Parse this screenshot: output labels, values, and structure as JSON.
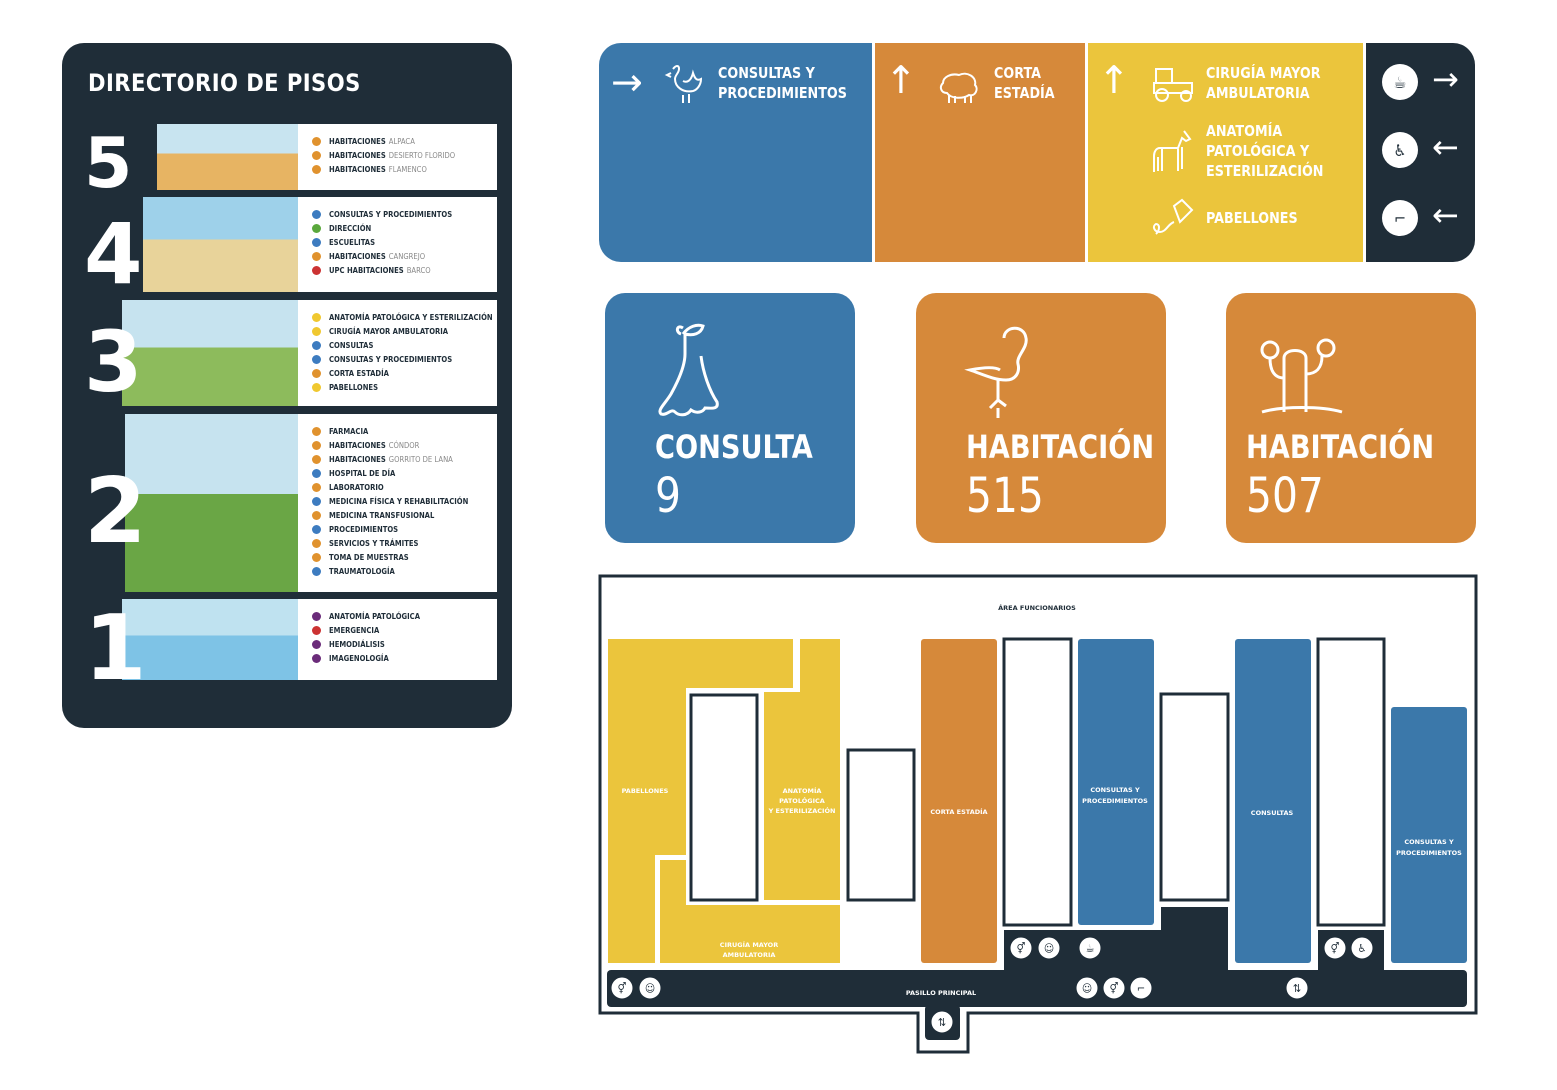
{
  "colors": {
    "navy": "#1f2d38",
    "blue": "#3b78aa",
    "orange": "#d6893a",
    "yellow": "#ebc53c"
  },
  "directory": {
    "title": "DIRECTORIO DE PISOS",
    "floors": [
      {
        "number": "5",
        "items": [
          {
            "bold": "HABITACIONES",
            "light": "ALPACA",
            "color": "#e0922e"
          },
          {
            "bold": "HABITACIONES",
            "light": "DESIERTO FLORIDO",
            "color": "#e0922e"
          },
          {
            "bold": "HABITACIONES",
            "light": "FLAMENCO",
            "color": "#e0922e"
          }
        ]
      },
      {
        "number": "4",
        "items": [
          {
            "bold": "CONSULTAS Y PROCEDIMIENTOS",
            "light": "",
            "color": "#3d7cc0"
          },
          {
            "bold": "DIRECCIÓN",
            "light": "",
            "color": "#5aa83c"
          },
          {
            "bold": "ESCUELITAS",
            "light": "",
            "color": "#3d7cc0"
          },
          {
            "bold": "HABITACIONES",
            "light": "CANGREJO",
            "color": "#e0922e"
          },
          {
            "bold": "UPC HABITACIONES",
            "light": "BARCO",
            "color": "#cc3333"
          }
        ]
      },
      {
        "number": "3",
        "items": [
          {
            "bold": "ANATOMÍA PATOLÓGICA Y ESTERILIZACIÓN",
            "light": "",
            "color": "#f0c830"
          },
          {
            "bold": "CIRUGÍA MAYOR AMBULATORIA",
            "light": "",
            "color": "#f0c830"
          },
          {
            "bold": "CONSULTAS",
            "light": "",
            "color": "#3d7cc0"
          },
          {
            "bold": "CONSULTAS Y PROCEDIMIENTOS",
            "light": "",
            "color": "#3d7cc0"
          },
          {
            "bold": "CORTA ESTADÍA",
            "light": "",
            "color": "#e0922e"
          },
          {
            "bold": "PABELLONES",
            "light": "",
            "color": "#f0c830"
          }
        ]
      },
      {
        "number": "2",
        "items": [
          {
            "bold": "FARMACIA",
            "light": "",
            "color": "#e0922e"
          },
          {
            "bold": "HABITACIONES",
            "light": "CÓNDOR",
            "color": "#e0922e"
          },
          {
            "bold": "HABITACIONES",
            "light": "GORRITO DE LANA",
            "color": "#e0922e"
          },
          {
            "bold": "HOSPITAL DE DÍA",
            "light": "",
            "color": "#3d7cc0"
          },
          {
            "bold": "LABORATORIO",
            "light": "",
            "color": "#e0922e"
          },
          {
            "bold": "MEDICINA FÍSICA Y REHABILITACIÓN",
            "light": "",
            "color": "#3d7cc0"
          },
          {
            "bold": "MEDICINA TRANSFUSIONAL",
            "light": "",
            "color": "#e0922e"
          },
          {
            "bold": "PROCEDIMIENTOS",
            "light": "",
            "color": "#3d7cc0"
          },
          {
            "bold": "SERVICIOS Y TRÁMITES",
            "light": "",
            "color": "#e0922e"
          },
          {
            "bold": "TOMA DE MUESTRAS",
            "light": "",
            "color": "#e0922e"
          },
          {
            "bold": "TRAUMATOLOGÍA",
            "light": "",
            "color": "#3d7cc0"
          }
        ]
      },
      {
        "number": "1",
        "items": [
          {
            "bold": "ANATOMÍA PATOLÓGICA",
            "light": "",
            "color": "#6b2c7a"
          },
          {
            "bold": "EMERGENCIA",
            "light": "",
            "color": "#cc3333"
          },
          {
            "bold": "HEMODIÁLISIS",
            "light": "",
            "color": "#6b2c7a"
          },
          {
            "bold": "IMAGENOLOGÍA",
            "light": "",
            "color": "#6b2c7a"
          }
        ]
      }
    ]
  },
  "sign": {
    "blue": {
      "arrow": "→",
      "icon": "rooster-icon",
      "label1": "CONSULTAS Y",
      "label2": "PROCEDIMIENTOS"
    },
    "orange": {
      "arrow": "↑",
      "icon": "sheep-icon",
      "label1": "CORTA",
      "label2": "ESTADÍA"
    },
    "yellow": {
      "arrow": "↑",
      "items": [
        {
          "icon": "tractor-icon",
          "lines": [
            "CIRUGÍA MAYOR",
            "AMBULATORIA"
          ]
        },
        {
          "icon": "horse-icon",
          "lines": [
            "ANATOMÍA",
            "PATOLÓGICA Y",
            "ESTERILIZACIÓN"
          ]
        },
        {
          "icon": "kite-icon",
          "lines": [
            "PABELLONES"
          ]
        }
      ]
    },
    "navy": [
      {
        "icon": "coffee-icon",
        "glyph": "☕",
        "arrow": "→"
      },
      {
        "icon": "baby-changing-icon",
        "glyph": "♿",
        "arrow": "←"
      },
      {
        "icon": "stairs-icon",
        "glyph": "⌐",
        "arrow": "←"
      }
    ]
  },
  "cards": [
    {
      "icon": "bellflower-icon",
      "title": "CONSULTA",
      "number": "9",
      "color": "#3b78aa"
    },
    {
      "icon": "flamingo-icon",
      "title": "HABITACIÓN",
      "number": "515",
      "color": "#d6893a"
    },
    {
      "icon": "cactus-icon",
      "title": "HABITACIÓN",
      "number": "507",
      "color": "#d6893a"
    }
  ],
  "plan": {
    "staff_area": "ÁREA FUNCIONARIOS",
    "corridor": "PASILLO PRINCIPAL",
    "rooms": {
      "pabellones": "PABELLONES",
      "anatomia": [
        "ANATOMÍA",
        "PATOLÓGICA",
        "Y ESTERILIZACIÓN"
      ],
      "cirugia": [
        "CIRUGÍA MAYOR",
        "AMBULATORIA"
      ],
      "corta": "CORTA ESTADÍA",
      "consultas_proc_1": [
        "CONSULTAS Y",
        "PROCEDIMIENTOS"
      ],
      "consultas": "CONSULTAS",
      "consultas_proc_2": [
        "CONSULTAS Y",
        "PROCEDIMIENTOS"
      ]
    },
    "markers": [
      "restroom-icon",
      "baby-changing-icon",
      "coffee-icon",
      "restroom-icon",
      "accessible-icon",
      "restroom-icon",
      "baby-changing-icon",
      "baby-changing-icon",
      "restroom-icon",
      "stairs-icon",
      "elevator-icon",
      "elevator-icon"
    ]
  }
}
